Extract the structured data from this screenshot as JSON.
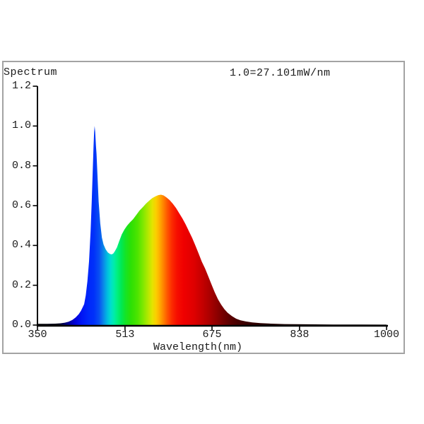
{
  "chart": {
    "title": "Spectrum",
    "scale_annotation": "1.0=27.101mW/nm",
    "xlabel": "Wavelength(nm)"
  },
  "colors": {
    "background": "#ffffff",
    "frame_border": "#a3a3a3",
    "axis": "#000000",
    "text": "#1a1a1a"
  },
  "chart_data": {
    "type": "area",
    "title": "Spectrum",
    "annotation": "1.0=27.101mW/nm",
    "xlabel": "Wavelength(nm)",
    "ylabel": "",
    "x_unit": "nm",
    "normalization": "1.0 = 27.101 mW/nm",
    "xlim": [
      350,
      1000
    ],
    "ylim": [
      0,
      1.2
    ],
    "x_ticks": [
      350,
      513,
      675,
      838,
      1000
    ],
    "x_tick_labels": [
      "350",
      "513",
      "675",
      "838",
      "1000"
    ],
    "y_ticks": [
      0.0,
      0.2,
      0.4,
      0.6,
      0.8,
      1.0,
      1.2
    ],
    "y_tick_labels": [
      "0.0",
      "0.2",
      "0.4",
      "0.6",
      "0.8",
      "1.0",
      "1.2"
    ],
    "grid": false,
    "legend": false,
    "features": {
      "blue_peak": {
        "wavelength_nm": 456,
        "relative_intensity": 1.0
      },
      "valley": {
        "wavelength_nm": 487,
        "relative_intensity": 0.355
      },
      "phosphor_peak": {
        "wavelength_nm": 580,
        "relative_intensity": 0.655
      }
    },
    "x": [
      350,
      368,
      383,
      393,
      401,
      408,
      415,
      421,
      427,
      431,
      434,
      437,
      440,
      443,
      446,
      449,
      451,
      453,
      454.5,
      455.5,
      456.5,
      457.5,
      459,
      460,
      462,
      464,
      467,
      470,
      473,
      477,
      481,
      485,
      488,
      491,
      494,
      498,
      502,
      507,
      512,
      517,
      522,
      528,
      534,
      540,
      546,
      552,
      558,
      564,
      570,
      575,
      580,
      585,
      590,
      596,
      602,
      608,
      614,
      620,
      626,
      632,
      638,
      644,
      650,
      656,
      662,
      668,
      674,
      680,
      686,
      692,
      698,
      704,
      712,
      720,
      728,
      738,
      750,
      765,
      785,
      810,
      850,
      900,
      950,
      1000
    ],
    "y": [
      0.006,
      0.006,
      0.007,
      0.009,
      0.012,
      0.017,
      0.026,
      0.038,
      0.055,
      0.072,
      0.088,
      0.105,
      0.15,
      0.22,
      0.32,
      0.47,
      0.62,
      0.78,
      0.9,
      0.97,
      1.0,
      0.97,
      0.9,
      0.86,
      0.74,
      0.62,
      0.51,
      0.44,
      0.405,
      0.381,
      0.365,
      0.357,
      0.355,
      0.359,
      0.37,
      0.39,
      0.42,
      0.455,
      0.48,
      0.5,
      0.515,
      0.532,
      0.553,
      0.575,
      0.592,
      0.61,
      0.625,
      0.638,
      0.647,
      0.653,
      0.655,
      0.651,
      0.642,
      0.628,
      0.61,
      0.588,
      0.562,
      0.535,
      0.505,
      0.472,
      0.438,
      0.4,
      0.36,
      0.318,
      0.285,
      0.245,
      0.205,
      0.165,
      0.13,
      0.103,
      0.08,
      0.062,
      0.045,
      0.032,
      0.024,
      0.018,
      0.013,
      0.01,
      0.007,
      0.005,
      0.004,
      0.003,
      0.003,
      0.002
    ],
    "spectral_gradient_stops": [
      {
        "nm": 350,
        "color": "#000000"
      },
      {
        "nm": 390,
        "color": "#00001a"
      },
      {
        "nm": 400,
        "color": "#000060"
      },
      {
        "nm": 410,
        "color": "#0000a0"
      },
      {
        "nm": 420,
        "color": "#0000d8"
      },
      {
        "nm": 432,
        "color": "#0014f4"
      },
      {
        "nm": 445,
        "color": "#0028fa"
      },
      {
        "nm": 455,
        "color": "#0030fa"
      },
      {
        "nm": 465,
        "color": "#0850f2"
      },
      {
        "nm": 473,
        "color": "#0a88e8"
      },
      {
        "nm": 480,
        "color": "#00bce0"
      },
      {
        "nm": 486,
        "color": "#00dcd0"
      },
      {
        "nm": 492,
        "color": "#00ecae"
      },
      {
        "nm": 499,
        "color": "#00f07c"
      },
      {
        "nm": 506,
        "color": "#00e855"
      },
      {
        "nm": 514,
        "color": "#14e426"
      },
      {
        "nm": 524,
        "color": "#2ce004"
      },
      {
        "nm": 536,
        "color": "#4ce400"
      },
      {
        "nm": 546,
        "color": "#7ce800"
      },
      {
        "nm": 556,
        "color": "#b4e800"
      },
      {
        "nm": 564,
        "color": "#e4e400"
      },
      {
        "nm": 571,
        "color": "#fcce00"
      },
      {
        "nm": 578,
        "color": "#ffaa00"
      },
      {
        "nm": 585,
        "color": "#ff8000"
      },
      {
        "nm": 592,
        "color": "#ff5500"
      },
      {
        "nm": 600,
        "color": "#fc2c00"
      },
      {
        "nm": 610,
        "color": "#f60e00"
      },
      {
        "nm": 622,
        "color": "#f00000"
      },
      {
        "nm": 640,
        "color": "#e00000"
      },
      {
        "nm": 655,
        "color": "#c80000"
      },
      {
        "nm": 670,
        "color": "#ac0000"
      },
      {
        "nm": 682,
        "color": "#920000"
      },
      {
        "nm": 694,
        "color": "#780000"
      },
      {
        "nm": 706,
        "color": "#600000"
      },
      {
        "nm": 720,
        "color": "#4a0000"
      },
      {
        "nm": 740,
        "color": "#380000"
      },
      {
        "nm": 765,
        "color": "#2a0000"
      },
      {
        "nm": 800,
        "color": "#1e0000"
      },
      {
        "nm": 860,
        "color": "#120000"
      },
      {
        "nm": 930,
        "color": "#0a0000"
      },
      {
        "nm": 1000,
        "color": "#060000"
      }
    ]
  }
}
